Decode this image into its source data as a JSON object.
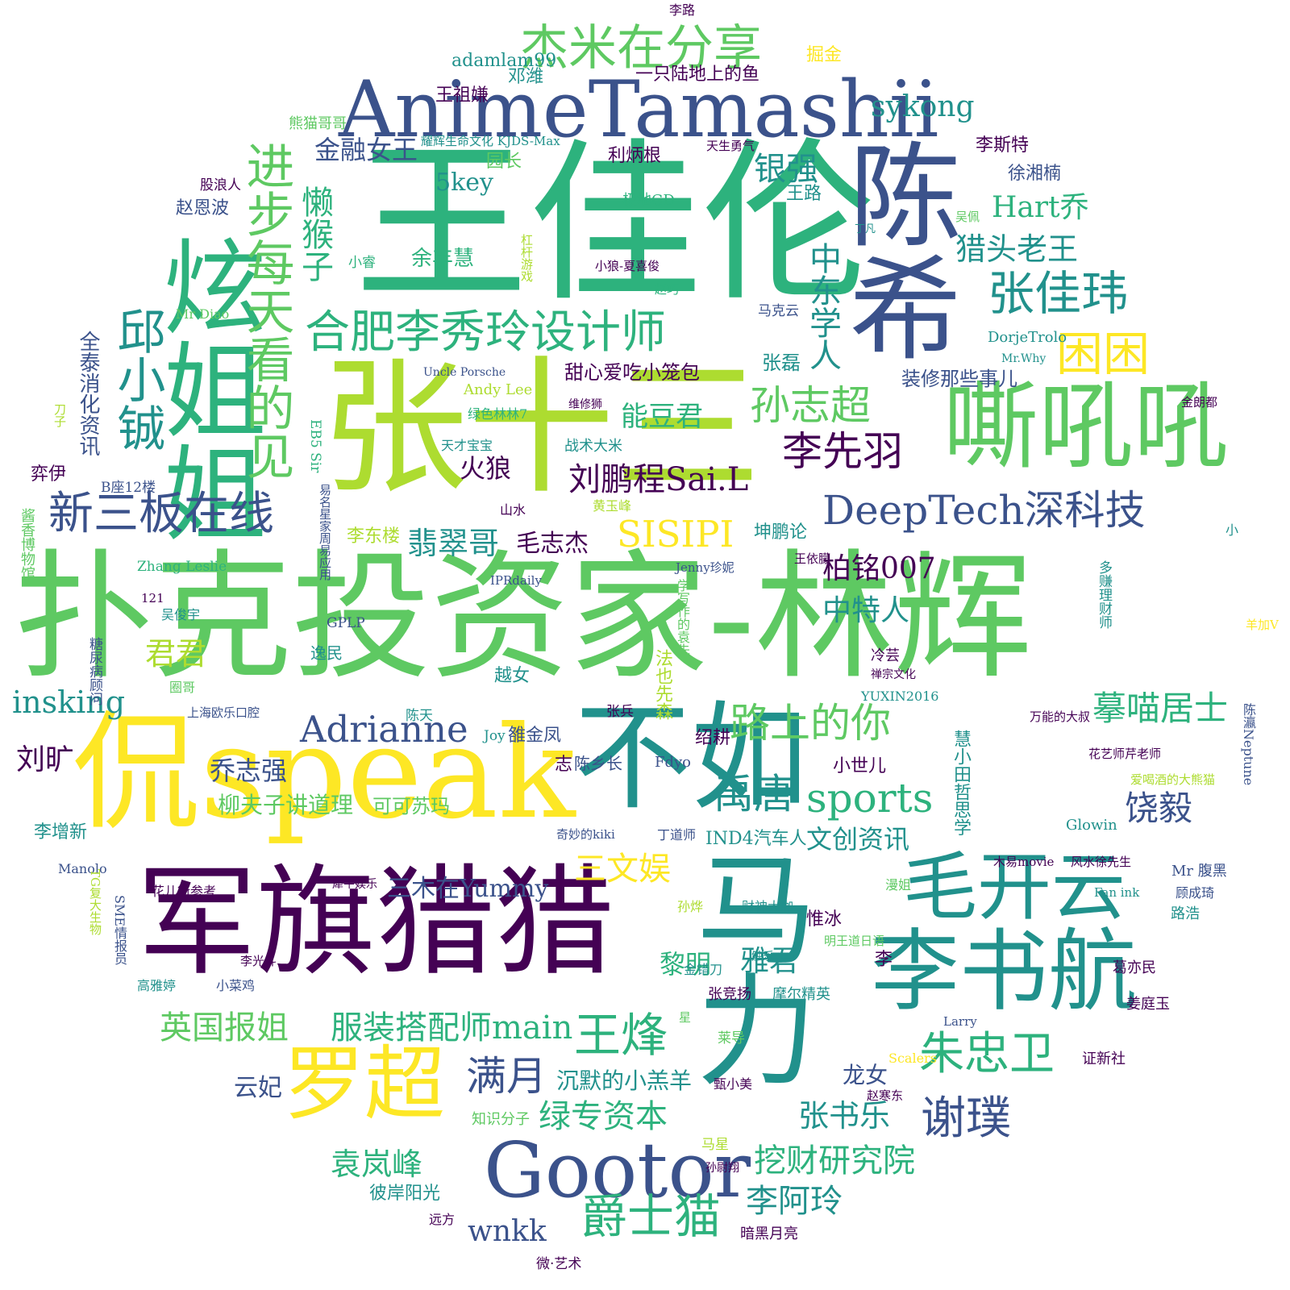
{
  "palette": {
    "c1": "#440154",
    "c2": "#3b528b",
    "c3": "#21918c",
    "c4": "#2db27d",
    "c5": "#5ec962",
    "c6": "#addc30",
    "c7": "#fde725"
  },
  "words": {
    "w001": "扑克投资家-林辉",
    "w002": "王佳伦",
    "w003": "AnimeTamashii",
    "w004": "张十三",
    "w005": "侃speak",
    "w006": "军旗猎猎",
    "w007": "陈希",
    "w008": "嘶吼吼",
    "w009": "炫姐姐",
    "w010": "不如",
    "w011": "马力",
    "w012": "李书航",
    "w013": "Gootor",
    "w014": "罗超",
    "w015": "毛开云",
    "w016": "DeepTech深科技",
    "w017": "杰米在分享",
    "w018": "合肥李秀玲设计师",
    "w019": "新三板在线",
    "w020": "邱小铖",
    "w021": "进步每天看的见",
    "w022": "张佳玮",
    "w023": "困困",
    "w024": "孙志超",
    "w025": "李先羽",
    "w026": "懒猴子",
    "w027": "路上的你",
    "w028": "sports",
    "w029": "禹唐",
    "w030": "饶毅",
    "w031": "摹喵居士",
    "w032": "Adrianne",
    "w033": "王烽",
    "w034": "朱忠卫",
    "w035": "谢璞",
    "w036": "满月",
    "w037": "爵士猫",
    "w038": "英国报姐",
    "w039": "服装搭配师main",
    "w040": "SISIPI",
    "w041": "刘鹏程Sai.L",
    "w042": "翡翠哥",
    "w043": "毛志杰",
    "w044": "猎头老王",
    "w045": "Hart乔",
    "w046": "银强",
    "w047": "金融女王",
    "w048": "sykong",
    "w049": "中东学人",
    "w050": "柏铭007",
    "w051": "中特人",
    "w052": "能豆君",
    "w053": "火狼",
    "w054": "甜心爱吃小笼包",
    "w055": "装修那些事儿",
    "w056": "绿专资本",
    "w057": "挖财研究院",
    "w058": "李阿玲",
    "w059": "袁岚峰",
    "w060": "张书乐",
    "w061": "三文娱",
    "w062": "三木在Yummy",
    "w063": "文创资讯",
    "w064": "IND4汽车人",
    "w065": "insking",
    "w066": "刘旷",
    "w067": "君君",
    "w068": "乔志强",
    "w069": "柳夫子讲道理",
    "w070": "可可苏玛",
    "w071": "雅君",
    "w072": "黎明",
    "w073": "龙女",
    "w074": "沉默的小羔羊",
    "w075": "云妃",
    "w076": "wnkk",
    "w077": "5key",
    "w078": "园长",
    "w079": "余丰慧",
    "w080": "利炳根",
    "w081": "王祖嫌",
    "w082": "一只陆地上的鱼",
    "w083": "adamlam99",
    "w084": "邓潍",
    "w085": "掘金",
    "w086": "李路",
    "w087": "熊猫哥哥",
    "w088": "耀辉生命文化 KJDS-Max",
    "w089": "天生勇气",
    "w090": "股浪人",
    "w091": "赵恩波",
    "w092": "李斯特",
    "w093": "徐湘楠",
    "w094": "王路",
    "w095": "极地GD",
    "w096": "吴佩",
    "w097": "丁凡",
    "w098": "小睿",
    "w099": "杠杆游戏",
    "w100": "小狼-夏喜俊",
    "w101": "赵巧",
    "w102": "Mr Diao",
    "w103": "马克云",
    "w104": "全泰消化资讯",
    "w105": "DorjeTrolo",
    "w106": "Mr.Why",
    "w107": "张磊",
    "w108": "Uncle Porsche",
    "w109": "Andy Lee",
    "w110": "维修狮",
    "w111": "绿色林林7",
    "w112": "金朗都",
    "w113": "刀子",
    "w114": "EB5 Sir",
    "w115": "天才宝宝",
    "w116": "战术大米",
    "w117": "弈伊",
    "w118": "B座12楼",
    "w119": "易名星家周易应用",
    "w120": "山水",
    "w121": "黄玉峰",
    "w122": "酱香博物馆",
    "w123": "李东楼",
    "w124": "坤鹏论",
    "w125": "小",
    "w126": "Zhang Leslie",
    "w127": "Jenny珍妮",
    "w128": "王依朦",
    "w129": "IPRdaily",
    "w130": "121",
    "w131": "吴俊宇",
    "w132": "学写作的袁先",
    "w133": "多赚理财师",
    "w134": "羊加V",
    "w135": "GPLP",
    "w136": "逸民",
    "w137": "糖尿病顾问",
    "w138": "法也先森",
    "w139": "越女",
    "w140": "冷芸",
    "w141": "禅宗文化",
    "w142": "圈哥",
    "w143": "YUXIN2016",
    "w144": "上海欧乐口腔",
    "w145": "陈天",
    "w146": "张兵",
    "w147": "万能的大叔",
    "w148": "陈瀛Neptune",
    "w149": "Joy",
    "w150": "雒金凤",
    "w151": "绍耕",
    "w152": "慧小田哲思学",
    "w153": "志",
    "w154": "陈乡长",
    "w155": "Fdyo",
    "w156": "花艺师芹老师",
    "w157": "小世儿",
    "w158": "爱喝酒的大熊猫",
    "w159": "李增新",
    "w160": "奇妙的kiki",
    "w161": "丁道师",
    "w162": "Glowin",
    "w163": "Manolo",
    "w164": "木易movie",
    "w165": "风水徐先生",
    "w166": "Mr 腹黑",
    "w167": "TG复大生物",
    "w168": "花儿街参考",
    "w169": "犀牛娱乐",
    "w170": "顾成琦",
    "w171": "SME情报员",
    "w172": "孙烨",
    "w173": "财神大咖",
    "w174": "漫姐",
    "w175": "Fan ink",
    "w176": "惟冰",
    "w177": "路浩",
    "w178": "明王道日语",
    "w179": "李光斗",
    "w180": "触乐",
    "w181": "李",
    "w182": "金错刀",
    "w183": "葛亦民",
    "w184": "高雅婷",
    "w185": "小菜鸡",
    "w186": "张竞扬",
    "w187": "摩尔精英",
    "w188": "姜庭玉",
    "w189": "星",
    "w190": "Larry",
    "w191": "莱导",
    "w192": "Scalers",
    "w193": "证新社",
    "w194": "甄小美",
    "w195": "赵寒东",
    "w196": "知识分子",
    "w197": "马星",
    "w198": "孙尉翔",
    "w199": "彼岸阳光",
    "w200": "远方",
    "w201": "暗黑月亮",
    "w202": "微·艺术"
  }
}
